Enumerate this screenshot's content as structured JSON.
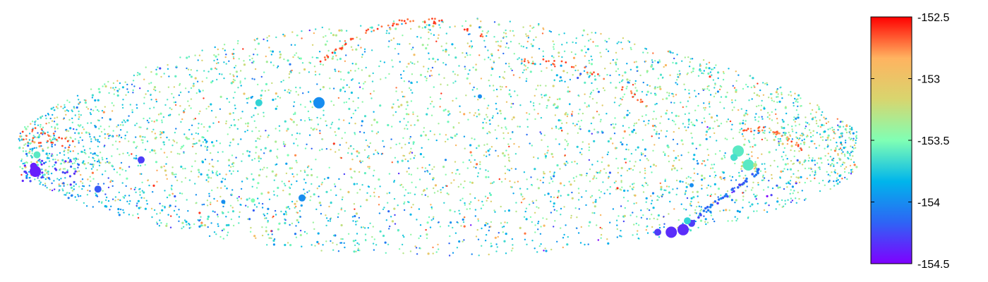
{
  "chart_data": {
    "type": "scatter",
    "title": "",
    "xlabel": "",
    "ylabel": "",
    "axes_visible": false,
    "grid": false,
    "colormap": "rainbow",
    "colorbar": {
      "position": "right",
      "min": -154.5,
      "max": -152.5,
      "ticks": [
        {
          "value": -152.5,
          "label": "-152.5"
        },
        {
          "value": -153.0,
          "label": "-153"
        },
        {
          "value": -153.5,
          "label": "-153.5"
        },
        {
          "value": -154.0,
          "label": "-154"
        },
        {
          "value": -154.5,
          "label": "-154.5"
        }
      ],
      "stops": [
        "#7f00ff",
        "#2e64f5",
        "#00b5eb",
        "#80ffb4",
        "#d8d56e",
        "#ffb360",
        "#ff0000"
      ]
    },
    "generator": {
      "seed": 20240511,
      "background_points": 4200,
      "edge_cluster_points": [
        {
          "name": "top-arc",
          "cx": 0.545,
          "cy": 0.08,
          "n": 55
        },
        {
          "name": "upper-right-arc",
          "cx": 0.9,
          "cy": 0.22,
          "n": 30
        },
        {
          "name": "right-arc",
          "cx": 0.78,
          "cy": 0.46,
          "n": 30
        },
        {
          "name": "left-tip",
          "cx": 0.03,
          "cy": 0.58,
          "n": 25
        }
      ]
    },
    "highlight_points": [
      {
        "x": 0.025,
        "y": 0.625,
        "v": -154.4,
        "size": "large"
      },
      {
        "x": 0.023,
        "y": 0.605,
        "v": -154.4,
        "size": "medium"
      },
      {
        "x": 0.027,
        "y": 0.56,
        "v": -153.6,
        "size": "medium"
      },
      {
        "x": 0.15,
        "y": 0.58,
        "v": -154.3,
        "size": "medium"
      },
      {
        "x": 0.099,
        "y": 0.695,
        "v": -154.2,
        "size": "medium"
      },
      {
        "x": 0.289,
        "y": 0.355,
        "v": -153.7,
        "size": "medium"
      },
      {
        "x": 0.36,
        "y": 0.355,
        "v": -154.0,
        "size": "large"
      },
      {
        "x": 0.34,
        "y": 0.73,
        "v": -154.0,
        "size": "medium"
      },
      {
        "x": 0.247,
        "y": 0.745,
        "v": -154.0,
        "size": "small"
      },
      {
        "x": 0.282,
        "y": 0.74,
        "v": -153.5,
        "size": "small"
      },
      {
        "x": 0.55,
        "y": 0.33,
        "v": -154.0,
        "size": "small"
      },
      {
        "x": 0.776,
        "y": 0.865,
        "v": -154.35,
        "size": "large"
      },
      {
        "x": 0.79,
        "y": 0.855,
        "v": -154.35,
        "size": "large"
      },
      {
        "x": 0.8,
        "y": 0.83,
        "v": -154.3,
        "size": "medium"
      },
      {
        "x": 0.76,
        "y": 0.865,
        "v": -154.3,
        "size": "medium"
      },
      {
        "x": 0.795,
        "y": 0.82,
        "v": -153.7,
        "size": "medium"
      },
      {
        "x": 0.855,
        "y": 0.545,
        "v": -153.6,
        "size": "large"
      },
      {
        "x": 0.867,
        "y": 0.6,
        "v": -153.6,
        "size": "large"
      },
      {
        "x": 0.85,
        "y": 0.57,
        "v": -153.65,
        "size": "medium"
      },
      {
        "x": 0.875,
        "y": 0.6,
        "v": -153.3,
        "size": "small"
      },
      {
        "x": 0.8,
        "y": 0.68,
        "v": -154.0,
        "size": "small"
      }
    ]
  }
}
